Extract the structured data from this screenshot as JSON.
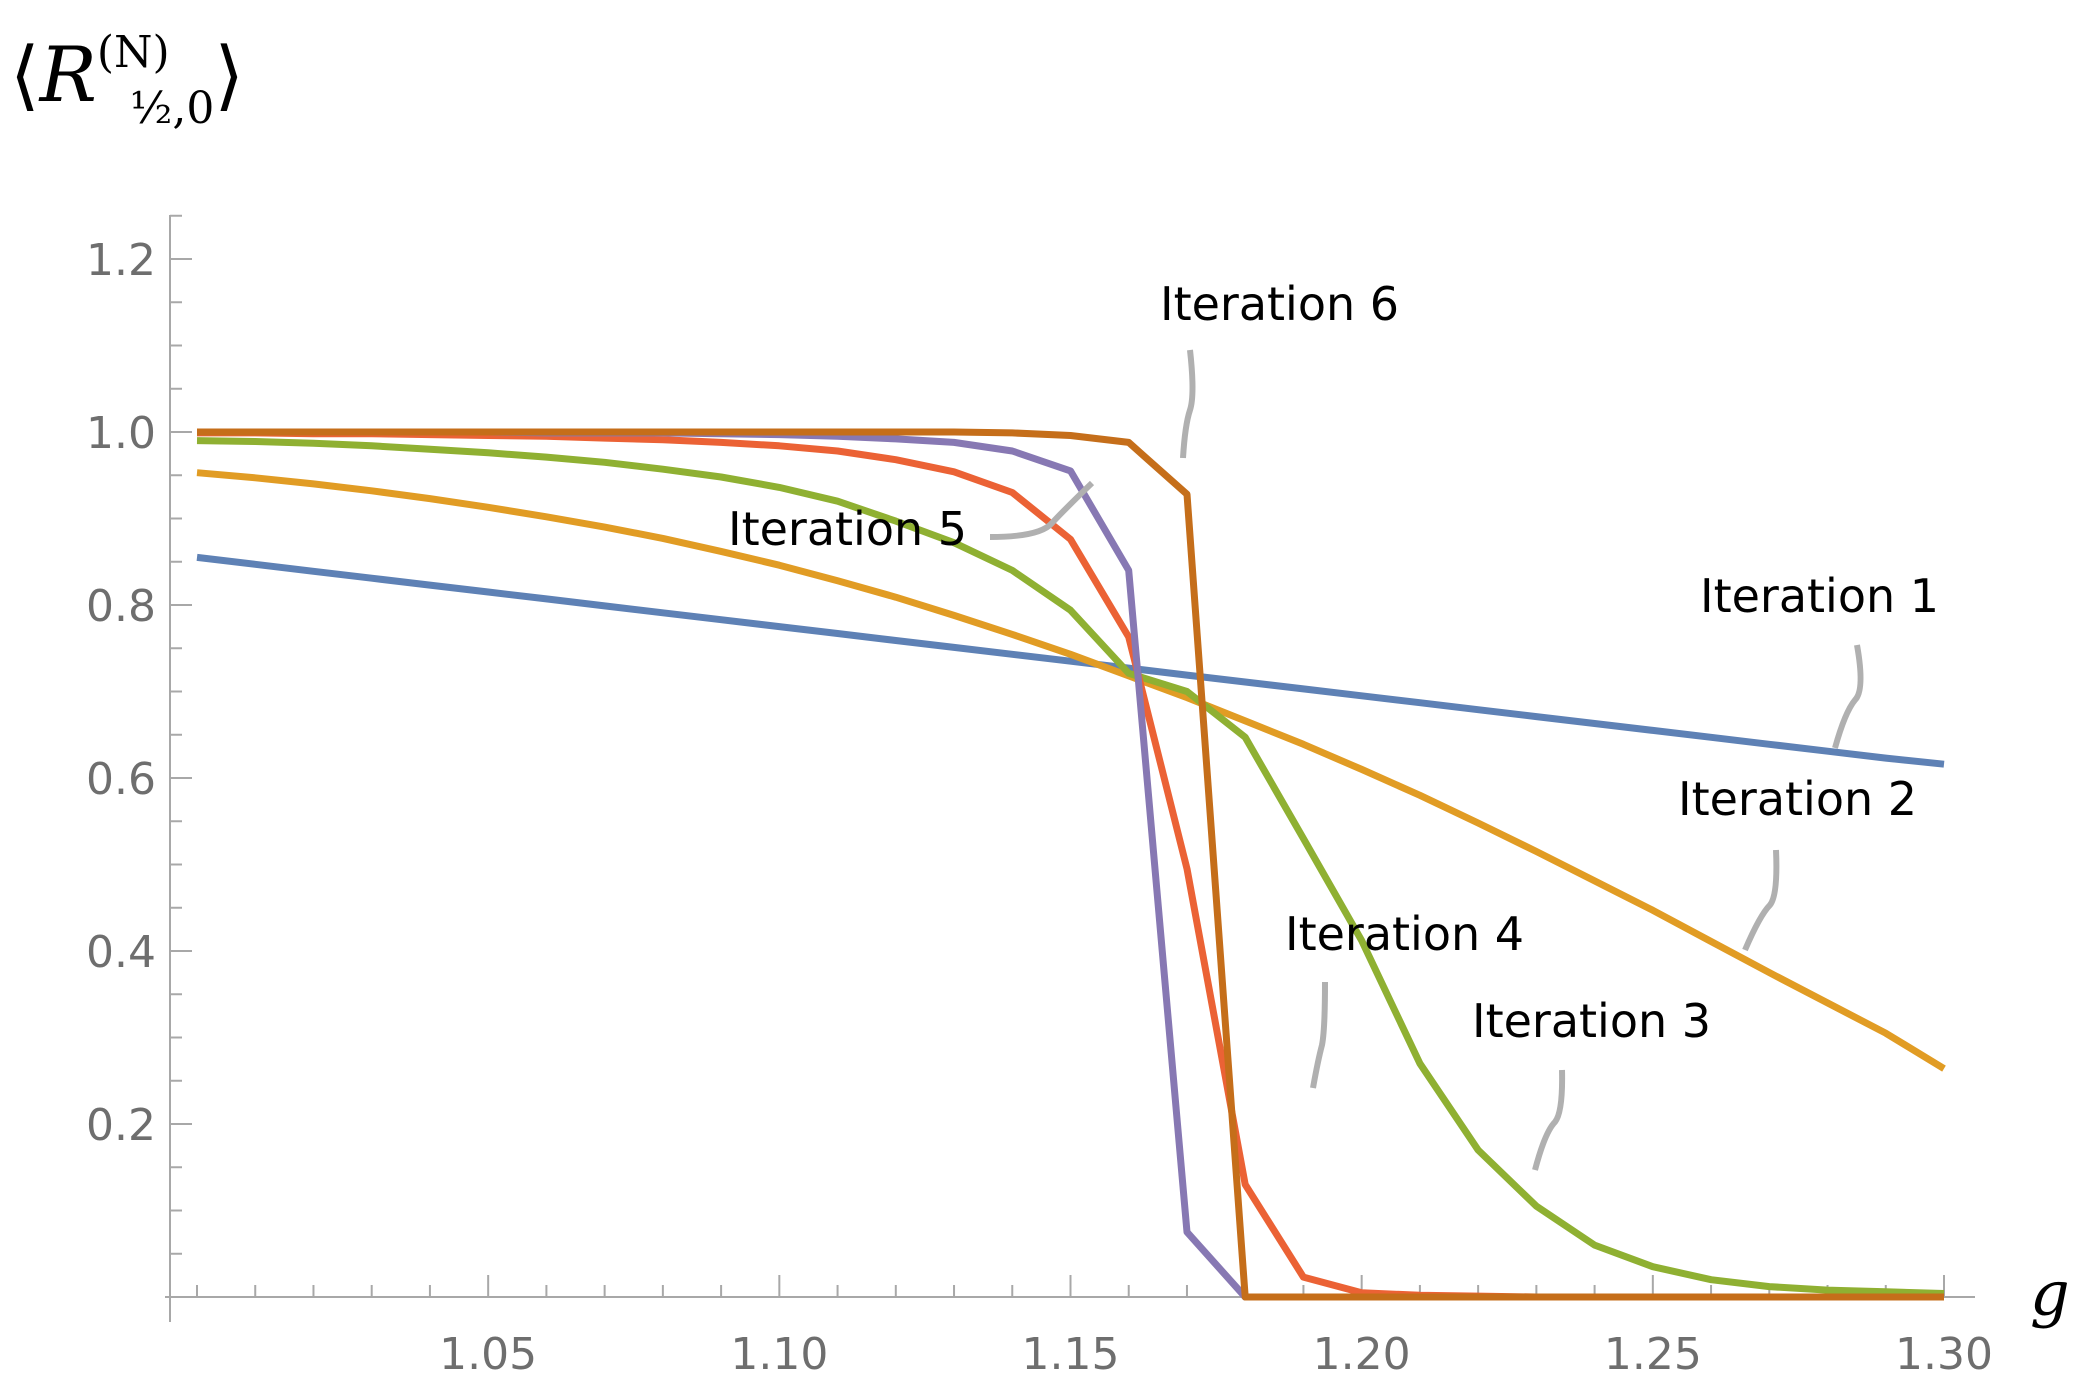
{
  "chart_data": {
    "type": "line",
    "title": "",
    "xlabel": "g",
    "ylabel": {
      "main": "R",
      "superscript": "(N)",
      "subscript": "½,0",
      "open_bracket": "⟨",
      "close_bracket": "⟩"
    },
    "xlim": [
      1.0,
      1.3
    ],
    "ylim": [
      0,
      1.25
    ],
    "x_ticks": [
      1.05,
      1.1,
      1.15,
      1.2,
      1.25,
      1.3
    ],
    "x_tick_labels": [
      "1.05",
      "1.10",
      "1.15",
      "1.20",
      "1.25",
      "1.30"
    ],
    "y_ticks": [
      0.2,
      0.4,
      0.6,
      0.8,
      1.0,
      1.2
    ],
    "y_tick_labels": [
      "0.2",
      "0.4",
      "0.6",
      "0.8",
      "1.0",
      "1.2"
    ],
    "grid": false,
    "x": [
      1.0,
      1.01,
      1.02,
      1.03,
      1.04,
      1.05,
      1.06,
      1.07,
      1.08,
      1.09,
      1.1,
      1.11,
      1.12,
      1.13,
      1.14,
      1.15,
      1.16,
      1.17,
      1.18,
      1.19,
      1.2,
      1.21,
      1.22,
      1.23,
      1.24,
      1.25,
      1.26,
      1.27,
      1.28,
      1.29,
      1.3
    ],
    "series": [
      {
        "name": "Iteration 1",
        "color": "#5e81b5",
        "values": [
          0.855,
          0.847,
          0.839,
          0.831,
          0.823,
          0.815,
          0.807,
          0.799,
          0.791,
          0.783,
          0.775,
          0.767,
          0.759,
          0.751,
          0.743,
          0.735,
          0.727,
          0.719,
          0.711,
          0.703,
          0.695,
          0.687,
          0.679,
          0.671,
          0.663,
          0.655,
          0.647,
          0.639,
          0.631,
          0.623,
          0.616
        ]
      },
      {
        "name": "Iteration 2",
        "color": "#e19c24",
        "values": [
          0.953,
          0.947,
          0.94,
          0.932,
          0.923,
          0.913,
          0.902,
          0.89,
          0.877,
          0.862,
          0.846,
          0.828,
          0.809,
          0.788,
          0.766,
          0.743,
          0.718,
          0.693,
          0.666,
          0.639,
          0.61,
          0.58,
          0.548,
          0.515,
          0.481,
          0.447,
          0.411,
          0.375,
          0.34,
          0.305,
          0.264
        ]
      },
      {
        "name": "Iteration 3",
        "color": "#8fb032",
        "values": [
          0.99,
          0.989,
          0.987,
          0.984,
          0.98,
          0.976,
          0.971,
          0.965,
          0.957,
          0.948,
          0.936,
          0.92,
          0.897,
          0.872,
          0.84,
          0.794,
          0.721,
          0.7,
          0.647,
          0.53,
          0.412,
          0.27,
          0.17,
          0.105,
          0.06,
          0.035,
          0.02,
          0.012,
          0.008,
          0.006,
          0.004
        ]
      },
      {
        "name": "Iteration 4",
        "color": "#eb6235",
        "values": [
          0.999,
          0.999,
          0.998,
          0.998,
          0.997,
          0.996,
          0.995,
          0.993,
          0.991,
          0.988,
          0.984,
          0.978,
          0.968,
          0.954,
          0.93,
          0.876,
          0.763,
          0.495,
          0.13,
          0.023,
          0.005,
          0.002,
          0.001,
          0.0,
          0.0,
          0.0,
          0.0,
          0.0,
          0.0,
          0.0,
          0.0
        ]
      },
      {
        "name": "Iteration 5",
        "color": "#8778b3",
        "values": [
          1.0,
          1.0,
          1.0,
          1.0,
          1.0,
          1.0,
          0.999,
          0.999,
          0.999,
          0.998,
          0.997,
          0.995,
          0.992,
          0.988,
          0.978,
          0.955,
          0.84,
          0.075,
          0.0,
          0.0,
          0.0,
          0.0,
          0.0,
          0.0,
          0.0,
          0.0,
          0.0,
          0.0,
          0.0,
          0.0,
          0.0
        ]
      },
      {
        "name": "Iteration 6",
        "color": "#c56e1a",
        "values": [
          1.0,
          1.0,
          1.0,
          1.0,
          1.0,
          1.0,
          1.0,
          1.0,
          1.0,
          1.0,
          1.0,
          1.0,
          1.0,
          1.0,
          0.999,
          0.996,
          0.988,
          0.928,
          0.0,
          0.0,
          0.0,
          0.0,
          0.0,
          0.0,
          0.0,
          0.0,
          0.0,
          0.0,
          0.0,
          0.0,
          0.0
        ]
      }
    ],
    "annotations": [
      {
        "series": "Iteration 1",
        "text": "Iteration 1"
      },
      {
        "series": "Iteration 2",
        "text": "Iteration 2"
      },
      {
        "series": "Iteration 3",
        "text": "Iteration 3"
      },
      {
        "series": "Iteration 4",
        "text": "Iteration 4"
      },
      {
        "series": "Iteration 5",
        "text": "Iteration 5"
      },
      {
        "series": "Iteration 6",
        "text": "Iteration 6"
      }
    ]
  }
}
